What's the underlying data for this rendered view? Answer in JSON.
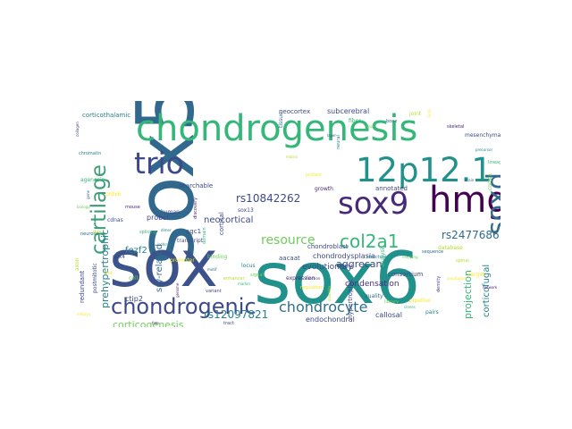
{
  "words": [
    {
      "text": "sox5",
      "color": "#31688e"
    },
    {
      "text": "sox6",
      "color": "#21918c"
    },
    {
      "text": "sox",
      "color": "#3b528b"
    },
    {
      "text": "chondrogenesis",
      "color": "#35b779"
    },
    {
      "text": "12p12.1",
      "color": "#21918c"
    },
    {
      "text": "hmg",
      "color": "#440154"
    },
    {
      "text": "sox9",
      "color": "#482878"
    },
    {
      "text": "soxd",
      "color": "#31688e"
    },
    {
      "text": "trio",
      "color": "#3e4989"
    },
    {
      "text": "cartilage",
      "color": "#3e9d76"
    },
    {
      "text": "chondrogenic",
      "color": "#3e4989"
    },
    {
      "text": "chondrocyte",
      "color": "#2f6f8e"
    },
    {
      "text": "col2a1",
      "color": "#35b779"
    },
    {
      "text": "resource",
      "color": "#6ece58"
    },
    {
      "text": "rs10842262",
      "color": "#3e4989"
    },
    {
      "text": "rs2477686",
      "color": "#31688e"
    },
    {
      "text": "rs12097821",
      "color": "#26828e"
    },
    {
      "text": "corticogenesis",
      "color": "#6ece58"
    },
    {
      "text": "prehypertrophic",
      "color": "#26828e"
    },
    {
      "text": "neocortical",
      "color": "#3e4989"
    },
    {
      "text": "aggrecan",
      "color": "#3e4989"
    },
    {
      "text": "corticofugal",
      "color": "#26828e"
    },
    {
      "text": "projection",
      "color": "#35b779"
    },
    {
      "text": "sry-related",
      "color": "#31688e"
    },
    {
      "text": "fezf2",
      "color": "#26828e"
    },
    {
      "text": "evolutionary",
      "color": "#3e4989"
    },
    {
      "text": "condensation",
      "color": "#472d7b"
    },
    {
      "text": "endochondral",
      "color": "#3e4989"
    },
    {
      "text": "chondrodysplasia",
      "color": "#3e4989"
    },
    {
      "text": "chondroblast",
      "color": "#3e4989"
    },
    {
      "text": "consortium",
      "color": "#3e4989"
    },
    {
      "text": "hypertrophic",
      "color": "#3e4989"
    },
    {
      "text": "callosal",
      "color": "#3e4989"
    },
    {
      "text": "redundant",
      "color": "#3e4989"
    },
    {
      "text": "ctip2",
      "color": "#3e4989"
    },
    {
      "text": "probst",
      "color": "#3e4989"
    },
    {
      "text": "agc1",
      "color": "#3e4989"
    },
    {
      "text": "corticothalamic",
      "color": "#26828e"
    },
    {
      "text": "searchable",
      "color": "#3e4989"
    },
    {
      "text": "neocortex",
      "color": "#3e4989"
    },
    {
      "text": "subcerebral",
      "color": "#3e4989"
    },
    {
      "text": "annotated",
      "color": "#3e4989"
    },
    {
      "text": "transcriptome",
      "color": "#3e4989"
    },
    {
      "text": "cortical",
      "color": "#3e4989"
    },
    {
      "text": "sox13",
      "color": "#3e4989"
    },
    {
      "text": "cdnas",
      "color": "#3e4989"
    },
    {
      "text": "sox4",
      "color": "#3e4989"
    },
    {
      "text": "postmitotic",
      "color": "#3e4989"
    },
    {
      "text": "aacaat",
      "color": "#3e4989"
    },
    {
      "text": "prdx6",
      "color": "#fde725"
    },
    {
      "text": "pipeline",
      "color": "#fde725"
    }
  ],
  "minor_words": [
    "collagen",
    "chromatin",
    "agenesis",
    "biology",
    "neurons",
    "axon",
    "embryo",
    "mouse",
    "human",
    "dimer",
    "domain",
    "binding",
    "motif",
    "enhancer",
    "promoter",
    "genome",
    "variant",
    "locus",
    "marker",
    "signal",
    "tissue",
    "matrix",
    "protein",
    "growth",
    "layer",
    "neural",
    "fiber",
    "glial",
    "bone",
    "joint",
    "limb",
    "skeletal",
    "mesenchymal",
    "precursor",
    "lineage",
    "cortex",
    "brain",
    "spinal",
    "target",
    "network",
    "density",
    "pairs",
    "clones",
    "library",
    "quality",
    "diversity",
    "regulation",
    "expression",
    "function",
    "structure",
    "analysis",
    "mapping",
    "sequence",
    "database",
    "annotation",
    "discovery",
    "transcript",
    "isoform",
    "splicing",
    "cell",
    "gene",
    "dna",
    "rna",
    "fate",
    "tract"
  ]
}
